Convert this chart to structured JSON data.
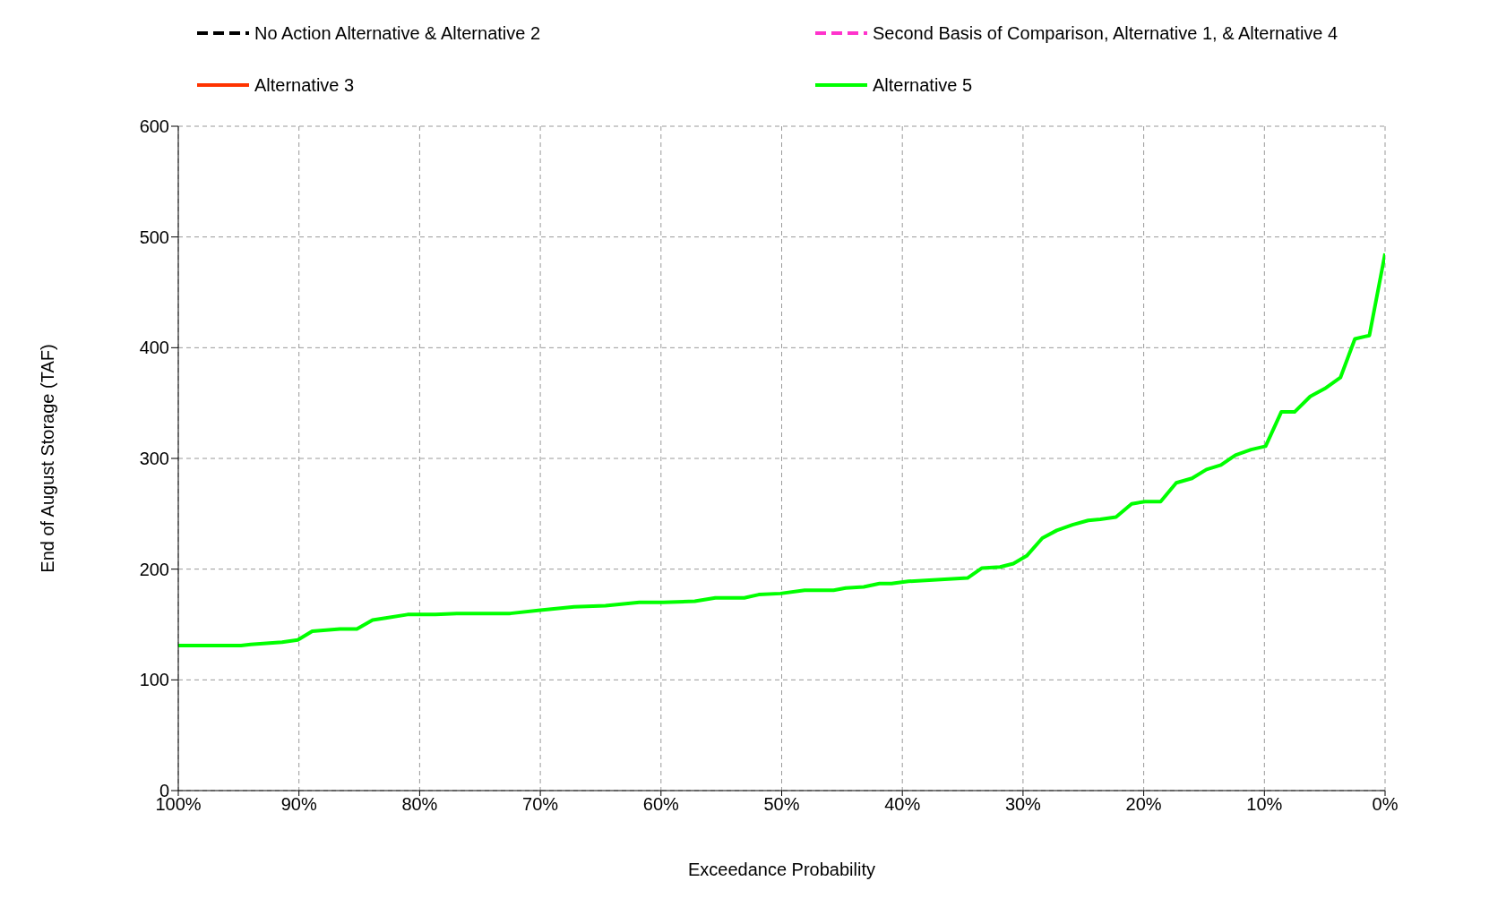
{
  "chart_data": {
    "type": "line",
    "xlabel": "Exceedance Probability",
    "ylabel": "End of  August Storage (TAF)",
    "x": [
      100,
      94.8,
      94.0,
      91.4,
      90.1,
      88.9,
      86.6,
      85.2,
      83.9,
      82.7,
      81.0,
      78.7,
      76.8,
      72.5,
      70.0,
      67.2,
      64.6,
      61.8,
      59.8,
      57.2,
      55.5,
      53.1,
      51.9,
      50.1,
      48.1,
      45.7,
      44.7,
      43.2,
      41.9,
      40.9,
      39.5,
      34.6,
      33.4,
      31.9,
      30.8,
      29.7,
      28.4,
      27.2,
      25.9,
      24.6,
      23.6,
      22.3,
      21.0,
      19.9,
      18.6,
      17.3,
      16.0,
      14.8,
      13.6,
      12.4,
      11.1,
      9.9,
      8.6,
      7.5,
      6.2,
      5.0,
      3.7,
      2.5,
      1.3,
      0
    ],
    "series": [
      {
        "name": "No Action Alternative & Alternative 2",
        "color": "#000000",
        "line_style": "dashed",
        "values": [
          null,
          null,
          null,
          null,
          null,
          null,
          null,
          null,
          null,
          null,
          null,
          null,
          null,
          null,
          null,
          null,
          null,
          null,
          null,
          null,
          null,
          null,
          null,
          null,
          null,
          null,
          null,
          null,
          null,
          null,
          null,
          null,
          null,
          null,
          null,
          null,
          null,
          null,
          null,
          null,
          null,
          null,
          null,
          null,
          null,
          null,
          null,
          null,
          null,
          null,
          null,
          null,
          null,
          null,
          null,
          null,
          null,
          null,
          null,
          null
        ]
      },
      {
        "name": "Second Basis of Comparison, Alternative 1, & Alternative 4",
        "color": "#ff33cc",
        "line_style": "dashed",
        "values": [
          null,
          null,
          null,
          null,
          null,
          null,
          null,
          null,
          null,
          null,
          null,
          null,
          null,
          null,
          null,
          null,
          null,
          null,
          null,
          null,
          null,
          null,
          null,
          null,
          null,
          null,
          null,
          null,
          null,
          null,
          null,
          null,
          null,
          null,
          null,
          null,
          null,
          null,
          null,
          null,
          null,
          null,
          null,
          null,
          null,
          null,
          null,
          null,
          null,
          null,
          null,
          null,
          null,
          null,
          null,
          null,
          null,
          null,
          null,
          null
        ]
      },
      {
        "name": "Alternative 3",
        "color": "#ff3300",
        "line_style": "solid",
        "values": [
          null,
          null,
          null,
          null,
          null,
          null,
          null,
          null,
          null,
          null,
          null,
          null,
          null,
          null,
          null,
          null,
          null,
          null,
          null,
          null,
          null,
          null,
          null,
          null,
          null,
          null,
          null,
          null,
          null,
          null,
          null,
          null,
          null,
          null,
          null,
          null,
          null,
          null,
          null,
          null,
          null,
          null,
          null,
          null,
          null,
          null,
          null,
          null,
          null,
          null,
          null,
          null,
          null,
          null,
          null,
          null,
          null,
          null,
          null,
          null
        ]
      },
      {
        "name": "Alternative 5",
        "color": "#00ff00",
        "line_style": "solid",
        "values": [
          131,
          131,
          132,
          134,
          136,
          144,
          146,
          146,
          154,
          156,
          159,
          159,
          160,
          160,
          163,
          166,
          167,
          170,
          170,
          171,
          174,
          174,
          177,
          178,
          181,
          181,
          183,
          184,
          187,
          187,
          189,
          192,
          201,
          202,
          205,
          212,
          228,
          235,
          240,
          244,
          245,
          247,
          259,
          261,
          261,
          278,
          282,
          290,
          294,
          303,
          308,
          311,
          342,
          342,
          356,
          363,
          373,
          408,
          411,
          485
        ]
      }
    ],
    "xlim": [
      100,
      0
    ],
    "xticks": [
      {
        "value": 100,
        "label": "100%"
      },
      {
        "value": 90,
        "label": "90%"
      },
      {
        "value": 80,
        "label": "80%"
      },
      {
        "value": 70,
        "label": "70%"
      },
      {
        "value": 60,
        "label": "60%"
      },
      {
        "value": 50,
        "label": "50%"
      },
      {
        "value": 40,
        "label": "40%"
      },
      {
        "value": 30,
        "label": "30%"
      },
      {
        "value": 20,
        "label": "20%"
      },
      {
        "value": 10,
        "label": "10%"
      },
      {
        "value": 0,
        "label": "0%"
      }
    ],
    "ylim": [
      0,
      600
    ],
    "yticks": [
      0,
      100,
      200,
      300,
      400,
      500,
      600
    ],
    "grid": true,
    "legend": "top",
    "marker": "none"
  }
}
